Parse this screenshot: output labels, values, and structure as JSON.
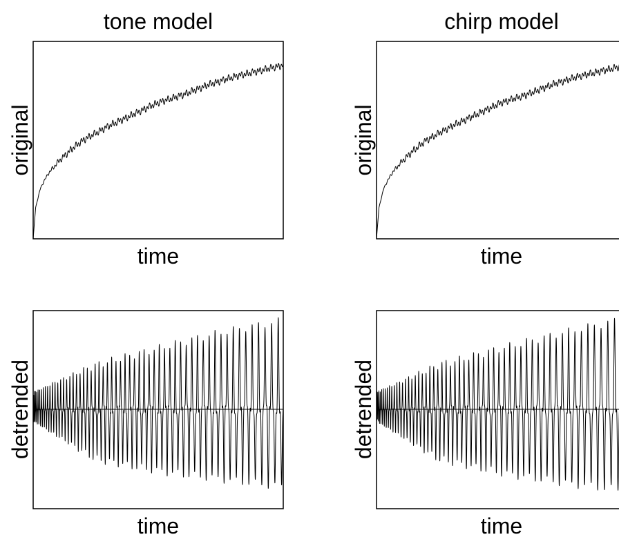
{
  "chart_data": [
    {
      "type": "line",
      "column": "tone model",
      "title": "tone model",
      "xlabel": "time",
      "ylabel": "original",
      "xticks": false,
      "yticks": false,
      "grid": false,
      "xlim": [
        0,
        1
      ],
      "ylim": [
        0,
        1.0
      ],
      "x": [
        0,
        0.01,
        0.03,
        0.06,
        0.1,
        0.15,
        0.2,
        0.3,
        0.4,
        0.5,
        0.6,
        0.7,
        0.8,
        0.9,
        1.0
      ],
      "values": [
        0,
        0.16,
        0.26,
        0.33,
        0.39,
        0.45,
        0.5,
        0.57,
        0.63,
        0.69,
        0.73,
        0.78,
        0.82,
        0.85,
        0.88
      ],
      "ripple_amplitude": 0.02
    },
    {
      "type": "line",
      "column": "chirp model",
      "title": "chirp model",
      "xlabel": "time",
      "ylabel": "original",
      "xticks": false,
      "yticks": false,
      "grid": false,
      "xlim": [
        0,
        1
      ],
      "ylim": [
        0,
        1.0
      ],
      "x": [
        0,
        0.01,
        0.03,
        0.06,
        0.1,
        0.15,
        0.2,
        0.3,
        0.4,
        0.5,
        0.6,
        0.7,
        0.8,
        0.9,
        1.0
      ],
      "values": [
        0,
        0.16,
        0.26,
        0.33,
        0.39,
        0.45,
        0.5,
        0.57,
        0.63,
        0.69,
        0.73,
        0.78,
        0.82,
        0.85,
        0.88
      ],
      "ripple_amplitude": 0.02
    },
    {
      "type": "line",
      "column": "tone model",
      "xlabel": "time",
      "ylabel": "detrended",
      "xticks": false,
      "yticks": false,
      "grid": false,
      "xlim": [
        0,
        1
      ],
      "ylim": [
        -1.0,
        1.0
      ],
      "zero_line": 0,
      "envelope_x": [
        0,
        0.25,
        0.5,
        0.75,
        1.0
      ],
      "envelope_max": [
        0.18,
        0.45,
        0.62,
        0.78,
        0.9
      ],
      "envelope_min": [
        -0.12,
        -0.5,
        -0.62,
        -0.7,
        -0.78
      ],
      "cycles": 60
    },
    {
      "type": "line",
      "column": "chirp model",
      "xlabel": "time",
      "ylabel": "detrended",
      "xticks": false,
      "yticks": false,
      "grid": false,
      "xlim": [
        0,
        1
      ],
      "ylim": [
        -1.0,
        1.0
      ],
      "zero_line": 0,
      "envelope_x": [
        0,
        0.25,
        0.5,
        0.75,
        1.0
      ],
      "envelope_max": [
        0.18,
        0.45,
        0.62,
        0.78,
        0.92
      ],
      "envelope_min": [
        -0.12,
        -0.5,
        -0.64,
        -0.74,
        -0.82
      ],
      "cycles": 58
    }
  ]
}
